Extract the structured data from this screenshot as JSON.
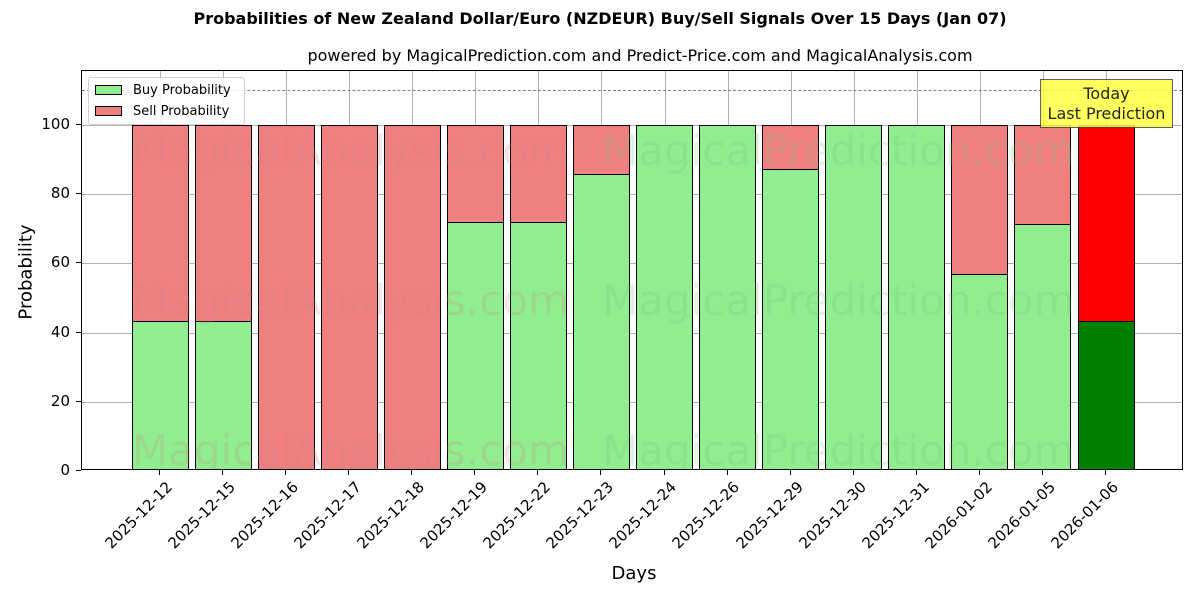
{
  "chart_data": {
    "type": "bar",
    "stacked": true,
    "title": "Probabilities of New Zealand Dollar/Euro (NZDEUR) Buy/Sell Signals Over 15 Days (Jan 07)",
    "subtitle": "powered by MagicalPrediction.com and Predict-Price.com and MagicalAnalysis.com",
    "xlabel": "Days",
    "ylabel": "Probability",
    "ylim": [
      0,
      115.6
    ],
    "yticks": [
      0,
      20,
      40,
      60,
      80,
      100
    ],
    "grid": true,
    "legend_position": "upper left",
    "reference_line": {
      "y": 110,
      "style": "dashed",
      "color": "#808080"
    },
    "categories": [
      "2025-12-12",
      "2025-12-15",
      "2025-12-16",
      "2025-12-17",
      "2025-12-18",
      "2025-12-19",
      "2025-12-22",
      "2025-12-23",
      "2025-12-24",
      "2025-12-26",
      "2025-12-29",
      "2025-12-30",
      "2025-12-31",
      "2026-01-02",
      "2026-01-05",
      "2026-01-06"
    ],
    "series": [
      {
        "name": "Buy Probability",
        "color": "#90ee90",
        "values": [
          43.3,
          43.3,
          0,
          0,
          0,
          71.9,
          71.9,
          85.7,
          100,
          100,
          87.3,
          100,
          100,
          56.9,
          71.4,
          43.3
        ]
      },
      {
        "name": "Sell Probability",
        "color": "#f08080",
        "values": [
          56.7,
          56.7,
          100,
          100,
          100,
          28.1,
          28.1,
          14.3,
          0,
          0,
          12.7,
          0,
          0,
          43.1,
          28.6,
          56.7
        ]
      }
    ],
    "highlight": {
      "index": 15,
      "buy_color": "#008000",
      "sell_color": "#ff0000"
    },
    "annotation": {
      "text_line1": "Today",
      "text_line2": "Last Prediction",
      "background": "#ffff44"
    },
    "watermarks": [
      "MagicalAnalysis.com",
      "MagicalPrediction.com"
    ]
  }
}
